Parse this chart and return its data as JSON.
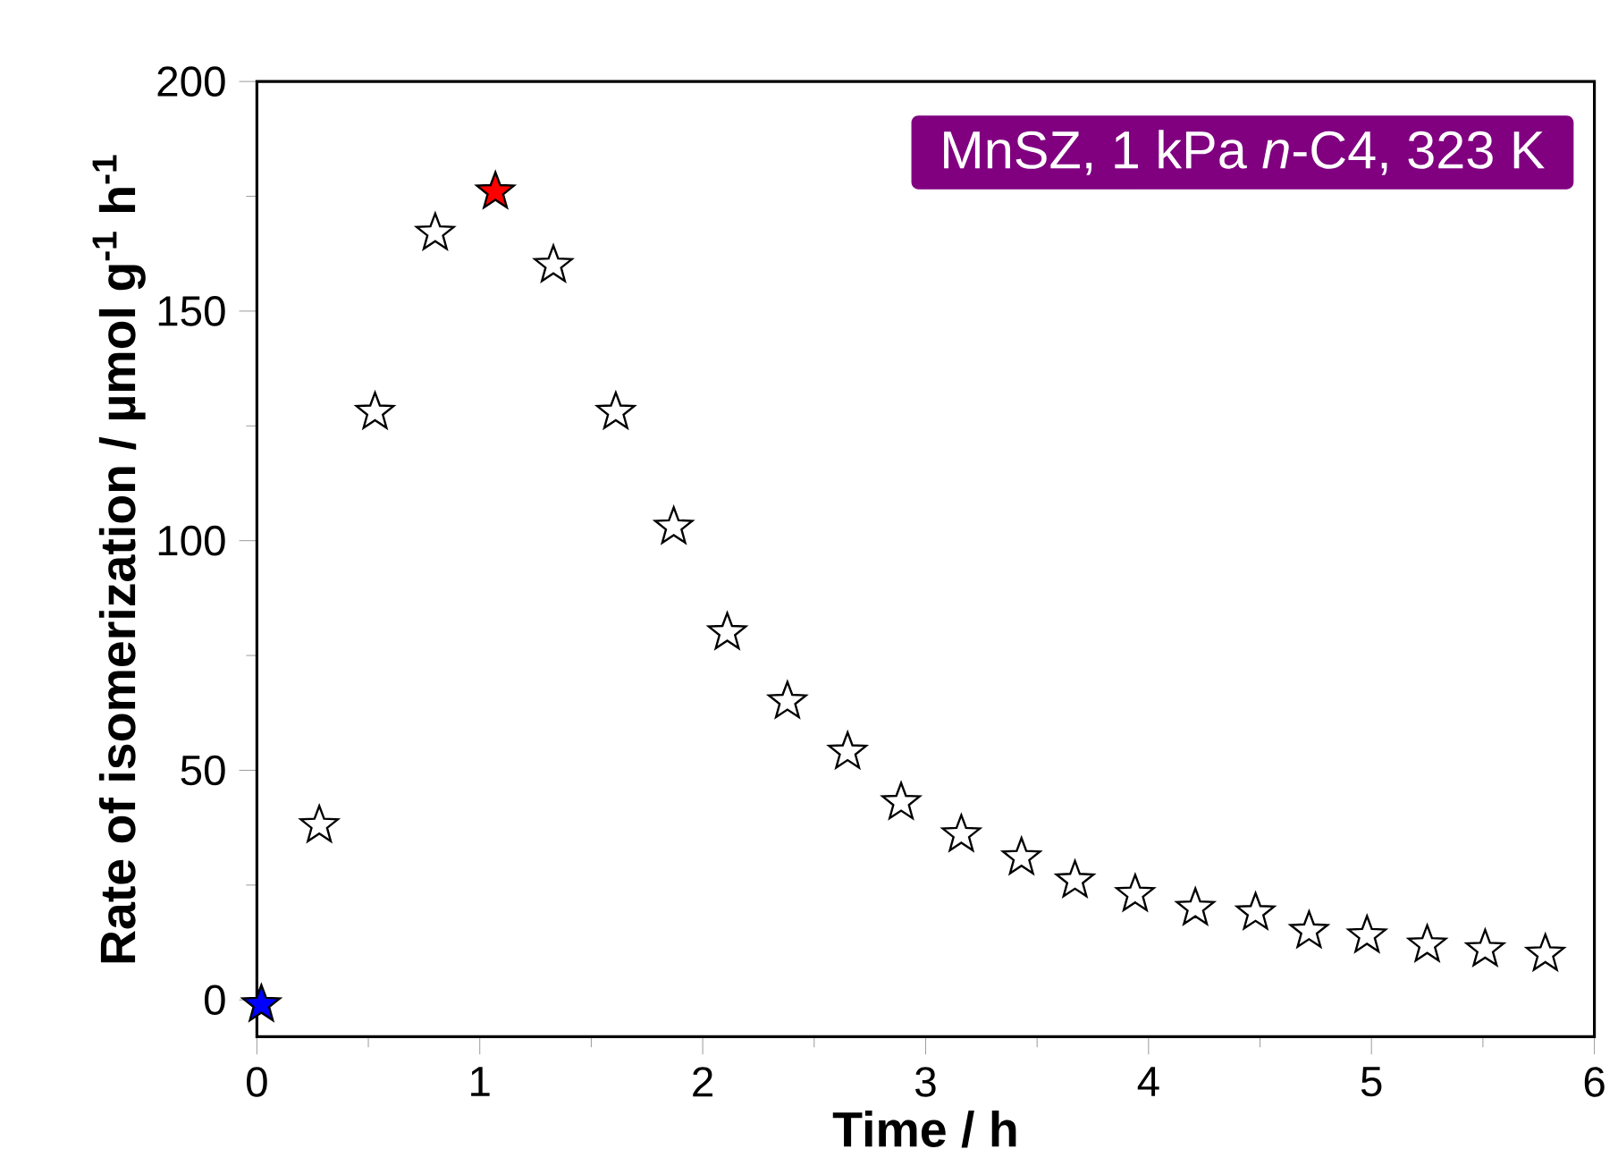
{
  "chart_data": {
    "type": "scatter",
    "xlabel": "Time / h",
    "ylabel": "Rate of isomerization / µmol g$^{-1}$ h$^{-1}$",
    "annotations": [
      "MnSZ, 1 kPa *n*-C4, 323 K"
    ],
    "xlim": [
      0,
      6
    ],
    "ylim": [
      -8,
      200
    ],
    "xticks": [
      0,
      1,
      2,
      3,
      4,
      5,
      6
    ],
    "yticks": [
      0,
      50,
      100,
      150,
      200
    ],
    "marker": "star",
    "grid": false,
    "series": [
      {
        "color": "#0000ff",
        "x": [
          0.02
        ],
        "values": [
          -1
        ]
      },
      {
        "color": "#ff0000",
        "x": [
          1.07
        ],
        "values": [
          176
        ]
      },
      {
        "color": "#ffffff",
        "x": [
          0.28,
          0.53,
          0.8,
          1.33,
          1.61,
          1.87,
          2.11,
          2.38,
          2.65,
          2.89,
          3.16,
          3.43,
          3.67,
          3.94,
          4.21,
          4.48,
          4.72,
          4.98,
          5.25,
          5.51,
          5.78
        ],
        "values": [
          38,
          128,
          167,
          160,
          128,
          103,
          80,
          65,
          54,
          43,
          36,
          31,
          26,
          23,
          20,
          19,
          15,
          14,
          12,
          11,
          10
        ]
      }
    ]
  }
}
